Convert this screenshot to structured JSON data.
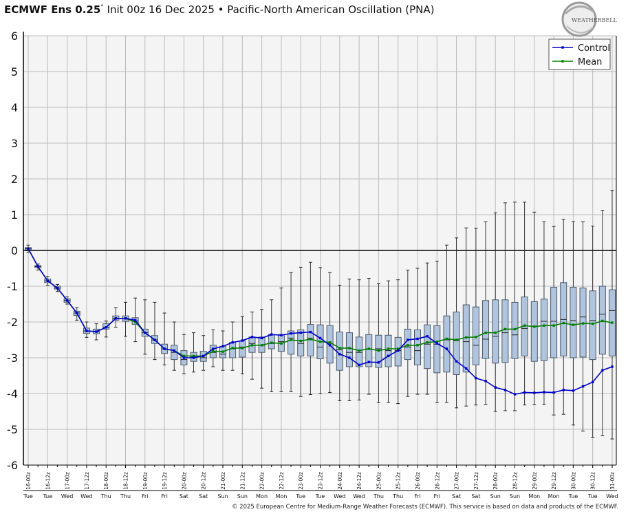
{
  "header": {
    "model": "ECMWF Ens 0.25",
    "degree": "°",
    "subtitle": "Init 00z 16 Dec 2025 • Pacific-North American Oscillation (PNA)",
    "logo_text": "WEATHERBELL"
  },
  "footer": {
    "copyright": "© 2025 European Centre for Medium-Range Weather Forecasts (ECMWF). This service is based on data and products of the ECMWF."
  },
  "colors": {
    "control": "#0000cc",
    "mean": "#008000",
    "box_fill": "#b0c4de",
    "box_stroke": "#4a5a6a",
    "plot_bg": "#f4f4f4",
    "grid": "#bbbbbb"
  },
  "chart_data": {
    "type": "boxplot",
    "ylim": [
      -6,
      6
    ],
    "yticks": [
      6,
      5,
      4,
      3,
      2,
      1,
      0,
      -1,
      -2,
      -3,
      -4,
      -5,
      -6
    ],
    "grid": true,
    "legend_placement": "top-right",
    "x_tick_labels": [
      "16-00z",
      "16-12z",
      "17-00z",
      "17-12z",
      "18-00z",
      "18-12z",
      "19-00z",
      "19-12z",
      "20-00z",
      "20-12z",
      "21-00z",
      "21-12z",
      "22-00z",
      "22-12z",
      "23-00z",
      "23-12z",
      "24-00z",
      "24-12z",
      "25-00z",
      "25-12z",
      "26-00z",
      "26-12z",
      "27-00z",
      "27-12z",
      "28-00z",
      "28-12z",
      "29-00z",
      "29-12z",
      "30-00z",
      "30-12z",
      "31-00z"
    ],
    "x_day_labels": [
      "Tue",
      "Tue",
      "Wed",
      "Wed",
      "Thu",
      "Thu",
      "Fri",
      "Fri",
      "Sat",
      "Sat",
      "Sun",
      "Sun",
      "Mon",
      "Mon",
      "Tue",
      "Tue",
      "Wed",
      "Wed",
      "Thu",
      "Thu",
      "Fri",
      "Fri",
      "Sat",
      "Sat",
      "Sun",
      "Sun",
      "Mon",
      "Mon",
      "Tue",
      "Tue",
      "Wed"
    ],
    "step_hours": 6,
    "boxes": [
      [
        -0.05,
        0.02,
        0.05,
        0.08,
        0.15
      ],
      [
        -0.55,
        -0.48,
        -0.45,
        -0.42,
        -0.38
      ],
      [
        -0.97,
        -0.9,
        -0.85,
        -0.8,
        -0.73
      ],
      [
        -1.15,
        -1.08,
        -1.05,
        -1.0,
        -0.95
      ],
      [
        -1.5,
        -1.45,
        -1.4,
        -1.35,
        -1.3
      ],
      [
        -1.95,
        -1.82,
        -1.75,
        -1.7,
        -1.6
      ],
      [
        -2.43,
        -2.32,
        -2.25,
        -2.17,
        -2.0
      ],
      [
        -2.5,
        -2.33,
        -2.27,
        -2.2,
        -2.05
      ],
      [
        -2.42,
        -2.2,
        -2.15,
        -2.05,
        -1.97
      ],
      [
        -2.15,
        -1.95,
        -1.9,
        -1.83,
        -1.6
      ],
      [
        -2.4,
        -1.98,
        -1.9,
        -1.83,
        -1.45
      ],
      [
        -2.55,
        -2.07,
        -1.97,
        -1.88,
        -1.33
      ],
      [
        -2.9,
        -2.4,
        -2.3,
        -2.2,
        -1.38
      ],
      [
        -3.05,
        -2.6,
        -2.5,
        -2.38,
        -1.45
      ],
      [
        -3.2,
        -2.88,
        -2.75,
        -2.62,
        -1.75
      ],
      [
        -3.35,
        -3.05,
        -2.85,
        -2.65,
        -2.0
      ],
      [
        -3.45,
        -3.2,
        -3.05,
        -2.8,
        -2.35
      ],
      [
        -3.4,
        -3.1,
        -2.98,
        -2.85,
        -2.3
      ],
      [
        -3.35,
        -3.1,
        -3.0,
        -2.82,
        -2.38
      ],
      [
        -3.25,
        -3.0,
        -2.85,
        -2.65,
        -2.22
      ],
      [
        -3.35,
        -3.0,
        -2.9,
        -2.68,
        -2.25
      ],
      [
        -3.35,
        -3.0,
        -2.75,
        -2.57,
        -2.0
      ],
      [
        -3.45,
        -2.98,
        -2.7,
        -2.53,
        -1.85
      ],
      [
        -3.6,
        -2.85,
        -2.6,
        -2.42,
        -1.72
      ],
      [
        -3.85,
        -2.85,
        -2.65,
        -2.42,
        -1.65
      ],
      [
        -3.95,
        -2.75,
        -2.6,
        -2.35,
        -1.38
      ],
      [
        -3.95,
        -2.82,
        -2.55,
        -2.35,
        -1.05
      ],
      [
        -3.95,
        -2.9,
        -2.45,
        -2.25,
        -0.62
      ],
      [
        -4.08,
        -2.95,
        -2.6,
        -2.22,
        -0.47
      ],
      [
        -4.03,
        -2.95,
        -2.45,
        -2.07,
        -0.33
      ],
      [
        -4.0,
        -3.03,
        -2.7,
        -2.08,
        -0.48
      ],
      [
        -3.97,
        -3.15,
        -2.6,
        -2.1,
        -0.62
      ],
      [
        -4.2,
        -3.35,
        -2.78,
        -2.28,
        -0.97
      ],
      [
        -4.2,
        -3.25,
        -2.85,
        -2.3,
        -0.8
      ],
      [
        -4.18,
        -3.25,
        -2.85,
        -2.42,
        -0.82
      ],
      [
        -4.02,
        -3.25,
        -2.75,
        -2.35,
        -0.78
      ],
      [
        -4.25,
        -3.27,
        -2.75,
        -2.37,
        -0.93
      ],
      [
        -4.25,
        -3.25,
        -2.8,
        -2.37,
        -0.85
      ],
      [
        -4.28,
        -3.23,
        -2.8,
        -2.43,
        -0.82
      ],
      [
        -4.08,
        -3.05,
        -2.7,
        -2.2,
        -0.55
      ],
      [
        -4.02,
        -3.2,
        -2.8,
        -2.22,
        -0.5
      ],
      [
        -4.02,
        -3.3,
        -2.62,
        -2.08,
        -0.35
      ],
      [
        -4.25,
        -3.42,
        -2.62,
        -2.1,
        -0.3
      ],
      [
        -4.25,
        -3.4,
        -2.5,
        -1.83,
        0.15
      ],
      [
        -4.4,
        -3.47,
        -2.52,
        -1.72,
        0.35
      ],
      [
        -4.35,
        -3.4,
        -2.55,
        -1.52,
        0.63
      ],
      [
        -4.32,
        -3.2,
        -2.65,
        -1.58,
        0.62
      ],
      [
        -4.3,
        -3.02,
        -2.48,
        -1.4,
        0.8
      ],
      [
        -4.5,
        -3.15,
        -2.4,
        -1.38,
        1.05
      ],
      [
        -4.48,
        -3.13,
        -2.3,
        -1.38,
        1.33
      ],
      [
        -4.48,
        -3.02,
        -2.36,
        -1.45,
        1.35
      ],
      [
        -4.32,
        -2.95,
        -2.18,
        -1.3,
        1.35
      ],
      [
        -4.3,
        -3.1,
        -2.12,
        -1.43,
        1.07
      ],
      [
        -4.3,
        -3.08,
        -1.98,
        -1.36,
        0.8
      ],
      [
        -4.6,
        -3.0,
        -1.98,
        -1.03,
        0.67
      ],
      [
        -4.58,
        -2.95,
        -1.93,
        -0.9,
        0.87
      ],
      [
        -4.88,
        -3.0,
        -1.96,
        -1.03,
        0.8
      ],
      [
        -5.05,
        -2.98,
        -1.86,
        -1.05,
        0.8
      ],
      [
        -5.22,
        -3.05,
        -1.96,
        -1.13,
        0.68
      ],
      [
        -5.18,
        -2.9,
        -1.78,
        -1.0,
        1.12
      ],
      [
        -5.27,
        -2.95,
        -1.68,
        -1.1,
        1.68
      ]
    ],
    "series": [
      {
        "name": "Control",
        "values": [
          0.05,
          -0.45,
          -0.85,
          -1.05,
          -1.4,
          -1.75,
          -2.25,
          -2.27,
          -2.15,
          -1.9,
          -1.9,
          -1.95,
          -2.3,
          -2.5,
          -2.75,
          -2.8,
          -3.0,
          -3.0,
          -2.95,
          -2.75,
          -2.68,
          -2.57,
          -2.52,
          -2.42,
          -2.45,
          -2.35,
          -2.37,
          -2.32,
          -2.3,
          -2.28,
          -2.45,
          -2.65,
          -2.9,
          -3.0,
          -3.2,
          -3.12,
          -3.13,
          -2.95,
          -2.8,
          -2.5,
          -2.47,
          -2.4,
          -2.6,
          -2.75,
          -3.1,
          -3.3,
          -3.57,
          -3.65,
          -3.83,
          -3.9,
          -4.02,
          -3.97,
          -3.98,
          -3.96,
          -3.97,
          -3.9,
          -3.92,
          -3.8,
          -3.68,
          -3.35,
          -3.25
        ]
      },
      {
        "name": "Mean",
        "values": [
          0.05,
          -0.45,
          -0.85,
          -1.05,
          -1.4,
          -1.75,
          -2.25,
          -2.27,
          -2.15,
          -1.9,
          -1.9,
          -2.0,
          -2.3,
          -2.5,
          -2.75,
          -2.8,
          -2.95,
          -2.95,
          -2.95,
          -2.82,
          -2.83,
          -2.73,
          -2.73,
          -2.65,
          -2.65,
          -2.58,
          -2.6,
          -2.5,
          -2.53,
          -2.48,
          -2.55,
          -2.57,
          -2.73,
          -2.73,
          -2.8,
          -2.75,
          -2.8,
          -2.75,
          -2.75,
          -2.65,
          -2.65,
          -2.57,
          -2.55,
          -2.47,
          -2.5,
          -2.43,
          -2.42,
          -2.3,
          -2.3,
          -2.2,
          -2.2,
          -2.1,
          -2.13,
          -2.1,
          -2.1,
          -2.03,
          -2.08,
          -2.04,
          -2.05,
          -1.97,
          -2.02
        ]
      }
    ]
  }
}
